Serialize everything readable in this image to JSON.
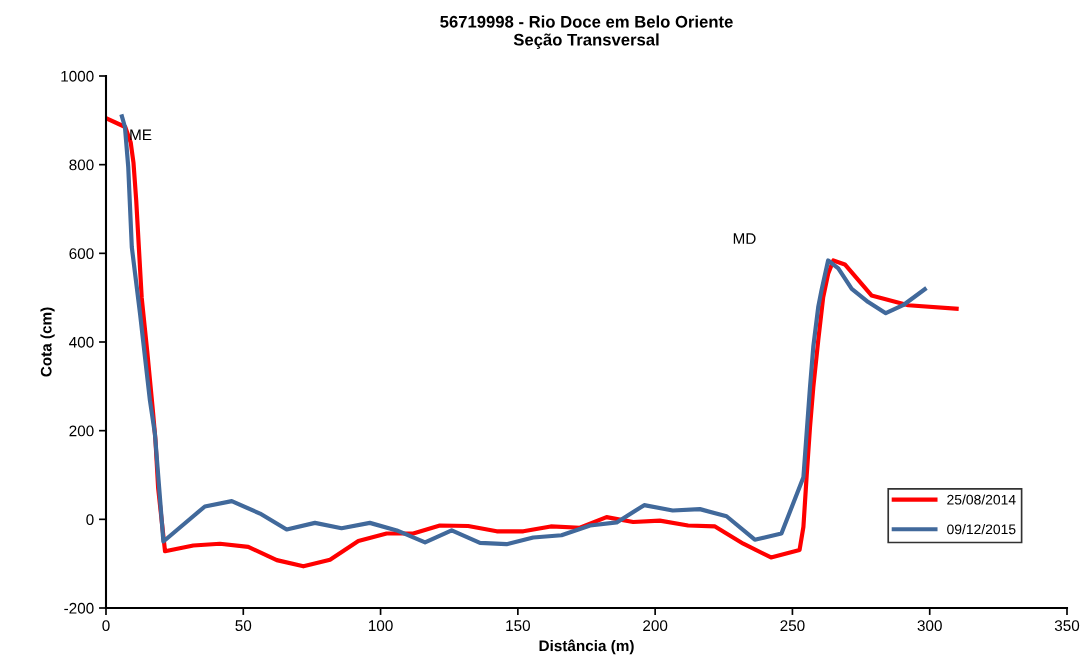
{
  "chart_data": {
    "type": "line",
    "title": "56719998 - Rio Doce em Belo Oriente\nSeção Transversal",
    "xlabel": "Distância (m)",
    "ylabel": "Cota (cm)",
    "xlim": [
      0,
      350
    ],
    "xticks": [
      0,
      50,
      100,
      150,
      200,
      250,
      300,
      350
    ],
    "ylim": [
      -200,
      1000
    ],
    "yticks": [
      -200,
      0,
      200,
      400,
      600,
      800,
      1000
    ],
    "grid": false,
    "legend": "bottom right",
    "marker": "none",
    "line_style": "solid",
    "annotations": [
      "ME",
      "MD"
    ],
    "series": [
      {
        "name": "25/08/2014",
        "color": "#ff0000",
        "x": [
          0,
          7,
          9,
          10,
          11,
          13,
          15,
          17,
          18,
          19,
          21.5,
          31.8,
          41.5,
          51.8,
          62.2,
          71.9,
          81.6,
          91.9,
          102.2,
          111.9,
          121.6,
          131.9,
          142.3,
          152,
          162,
          172.6,
          182.3,
          192,
          201.7,
          212,
          221.8,
          232.1,
          242.2,
          252.6,
          254,
          255.2,
          256.4,
          257.6,
          259.4,
          261.2,
          263,
          264.9,
          269.1,
          278.8,
          292.2,
          309.8
        ],
        "values": [
          905,
          885,
          850,
          805,
          720,
          500,
          380,
          250,
          180,
          70,
          -72,
          -59,
          -55,
          -62,
          -92,
          -106,
          -91,
          -49,
          -32,
          -32,
          -14,
          -15,
          -27,
          -27,
          -16,
          -19,
          5,
          -6,
          -3,
          -14,
          -16,
          -55,
          -86,
          -69,
          -17,
          100,
          208,
          298,
          404,
          501,
          554,
          584,
          575,
          505,
          483,
          475
        ]
      },
      {
        "name": "09/12/2015",
        "color": "#41699b",
        "x": [
          5.8,
          6.9,
          8.1,
          9.4,
          12.4,
          16,
          17.8,
          20.9,
          36,
          45.8,
          56.1,
          65.8,
          76.1,
          85.8,
          96.1,
          105.9,
          116.2,
          125.9,
          136.2,
          145.9,
          155.6,
          165.9,
          176.3,
          186,
          196,
          206.4,
          216.3,
          226,
          236.3,
          246,
          254,
          256.4,
          257.6,
          259.4,
          260.6,
          263,
          266.7,
          271.6,
          277.6,
          284,
          290.3,
          298.2
        ],
        "values": [
          909,
          885,
          795,
          614,
          464,
          268,
          194,
          -50,
          29,
          41,
          13,
          -23,
          -8,
          -20,
          -8,
          -25,
          -52,
          -25,
          -53,
          -56,
          -41,
          -36,
          -14,
          -7,
          32,
          20,
          23,
          7,
          -46,
          -32,
          95,
          298,
          389,
          479,
          517,
          584,
          566,
          520,
          490,
          465,
          483,
          519
        ]
      }
    ]
  }
}
